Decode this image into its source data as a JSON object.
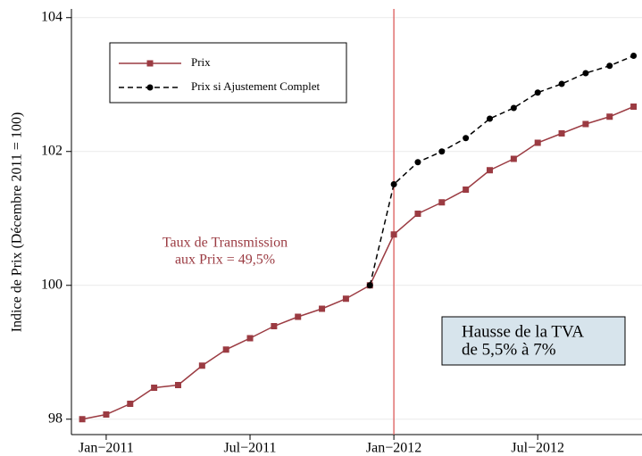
{
  "chart_data": {
    "type": "line",
    "y_label": "Indice de Prix (Décembre 2011 = 100)",
    "x": [
      -1,
      0,
      1,
      2,
      3,
      4,
      5,
      6,
      7,
      8,
      9,
      10,
      11,
      12,
      13,
      14,
      15,
      16,
      17,
      18,
      19,
      20,
      21,
      22
    ],
    "series": [
      {
        "name": "Prix",
        "color": "#9b3b42",
        "marker": "square",
        "dash": false,
        "values": [
          98.0,
          98.07,
          98.23,
          98.47,
          98.51,
          98.8,
          99.04,
          99.21,
          99.39,
          99.53,
          99.65,
          99.8,
          100.0,
          100.76,
          101.07,
          101.24,
          101.43,
          101.72,
          101.89,
          102.13,
          102.27,
          102.41,
          102.52,
          102.67
        ]
      },
      {
        "name": "Prix si Ajustement Complet",
        "color": "#000000",
        "marker": "circle",
        "dash": true,
        "values": [
          null,
          null,
          null,
          null,
          null,
          null,
          null,
          null,
          null,
          null,
          null,
          null,
          100.0,
          101.51,
          101.84,
          102.0,
          102.2,
          102.49,
          102.65,
          102.88,
          103.01,
          103.17,
          103.28,
          103.43
        ]
      }
    ],
    "xlim": [
      -1.45,
      22.35
    ],
    "xticks": [
      {
        "value": 0,
        "label": "Jan−2011"
      },
      {
        "value": 6,
        "label": "Jul−2011"
      },
      {
        "value": 12,
        "label": "Jan−2012"
      },
      {
        "value": 18,
        "label": "Jul−2012"
      }
    ],
    "ylim": [
      97.77,
      104.13
    ],
    "yticks": [
      98,
      100,
      102,
      104
    ],
    "grid": true,
    "vline": {
      "x": 12,
      "color": "#e0716f"
    },
    "annotations": [
      {
        "lines": [
          "Taux de Transmission",
          "aux Prix = 49,5%"
        ],
        "color": "#9b3b42"
      },
      {
        "lines": [
          "Hausse de la TVA",
          "de 5,5% à 7%"
        ],
        "color": "#000000",
        "box": "#d7e4ec"
      }
    ]
  }
}
